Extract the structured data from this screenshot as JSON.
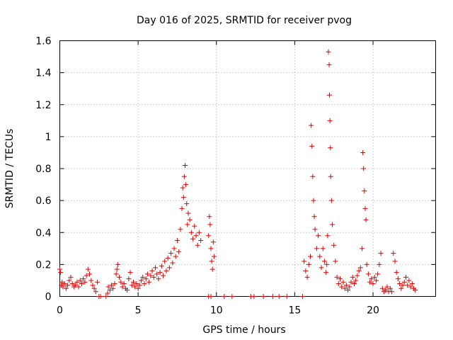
{
  "chart_data": {
    "type": "scatter",
    "title": "Day 016 of 2025, SRMTID for receiver pvog",
    "xlabel": "GPS time / hours",
    "ylabel": "SRMTID / TECUs",
    "xlim": [
      0,
      24
    ],
    "ylim": [
      0,
      1.6
    ],
    "xticks": [
      0,
      5,
      10,
      15,
      20
    ],
    "xtick_labels": [
      "0",
      "5",
      "10",
      "15",
      "20"
    ],
    "yticks": [
      0,
      0.2,
      0.4,
      0.6,
      0.8,
      1,
      1.2,
      1.4,
      1.6
    ],
    "ytick_labels": [
      "0",
      "0.2",
      "0.4",
      "0.6",
      "0.8",
      "1",
      "1.2",
      "1.4",
      "1.6"
    ],
    "grid": true,
    "marker": "+",
    "series": [
      {
        "name": "pvog",
        "color": "#e00000",
        "points": [
          [
            0.0,
            0.17
          ],
          [
            0.05,
            0.15
          ],
          [
            0.1,
            0.07
          ],
          [
            0.15,
            0.09
          ],
          [
            0.2,
            0.06
          ],
          [
            0.3,
            0.08
          ],
          [
            0.4,
            0.05
          ],
          [
            0.5,
            0.07
          ],
          [
            0.6,
            0.1
          ],
          [
            0.7,
            0.12
          ],
          [
            0.8,
            0.08
          ],
          [
            0.9,
            0.06
          ],
          [
            1.0,
            0.07
          ],
          [
            1.1,
            0.09
          ],
          [
            1.2,
            0.06
          ],
          [
            1.3,
            0.1
          ],
          [
            1.4,
            0.08
          ],
          [
            1.5,
            0.11
          ],
          [
            1.6,
            0.09
          ],
          [
            1.7,
            0.13
          ],
          [
            1.8,
            0.17
          ],
          [
            1.9,
            0.14
          ],
          [
            2.0,
            0.1
          ],
          [
            2.1,
            0.07
          ],
          [
            2.2,
            0.05
          ],
          [
            2.3,
            0.03
          ],
          [
            2.4,
            0.09
          ],
          [
            2.5,
            0.0
          ],
          [
            2.6,
            0.0
          ],
          [
            2.95,
            0.0
          ],
          [
            3.05,
            0.02
          ],
          [
            3.1,
            0.06
          ],
          [
            3.2,
            0.04
          ],
          [
            3.3,
            0.07
          ],
          [
            3.4,
            0.05
          ],
          [
            3.5,
            0.08
          ],
          [
            3.6,
            0.14
          ],
          [
            3.65,
            0.17
          ],
          [
            3.7,
            0.2
          ],
          [
            3.8,
            0.12
          ],
          [
            3.9,
            0.09
          ],
          [
            4.0,
            0.06
          ],
          [
            4.1,
            0.08
          ],
          [
            4.2,
            0.05
          ],
          [
            4.3,
            0.04
          ],
          [
            4.4,
            0.11
          ],
          [
            4.5,
            0.15
          ],
          [
            4.6,
            0.07
          ],
          [
            4.7,
            0.09
          ],
          [
            4.8,
            0.06
          ],
          [
            4.9,
            0.08
          ],
          [
            5.0,
            0.05
          ],
          [
            5.1,
            0.07
          ],
          [
            5.2,
            0.1
          ],
          [
            5.3,
            0.12
          ],
          [
            5.4,
            0.08
          ],
          [
            5.5,
            0.11
          ],
          [
            5.6,
            0.14
          ],
          [
            5.7,
            0.09
          ],
          [
            5.8,
            0.13
          ],
          [
            5.9,
            0.16
          ],
          [
            6.0,
            0.12
          ],
          [
            6.1,
            0.18
          ],
          [
            6.2,
            0.14
          ],
          [
            6.3,
            0.11
          ],
          [
            6.4,
            0.15
          ],
          [
            6.5,
            0.19
          ],
          [
            6.6,
            0.13
          ],
          [
            6.7,
            0.22
          ],
          [
            6.8,
            0.16
          ],
          [
            6.9,
            0.24
          ],
          [
            7.0,
            0.18
          ],
          [
            7.1,
            0.27
          ],
          [
            7.2,
            0.21
          ],
          [
            7.3,
            0.3
          ],
          [
            7.4,
            0.25
          ],
          [
            7.5,
            0.35
          ],
          [
            7.6,
            0.28
          ],
          [
            7.7,
            0.42
          ],
          [
            7.8,
            0.55
          ],
          [
            7.85,
            0.68
          ],
          [
            7.9,
            0.62
          ],
          [
            7.95,
            0.75
          ],
          [
            8.0,
            0.82
          ],
          [
            8.05,
            0.7
          ],
          [
            8.1,
            0.58
          ],
          [
            8.15,
            0.45
          ],
          [
            8.2,
            0.52
          ],
          [
            8.3,
            0.48
          ],
          [
            8.4,
            0.4
          ],
          [
            8.5,
            0.36
          ],
          [
            8.6,
            0.44
          ],
          [
            8.7,
            0.38
          ],
          [
            8.8,
            0.32
          ],
          [
            8.9,
            0.4
          ],
          [
            9.0,
            0.35
          ],
          [
            9.5,
            0.38
          ],
          [
            9.55,
            0.5
          ],
          [
            9.6,
            0.45
          ],
          [
            9.65,
            0.3
          ],
          [
            9.7,
            0.22
          ],
          [
            9.75,
            0.17
          ],
          [
            9.8,
            0.34
          ],
          [
            9.85,
            0.25
          ],
          [
            9.5,
            0.0
          ],
          [
            9.65,
            0.0
          ],
          [
            10.5,
            0.0
          ],
          [
            11.0,
            0.0
          ],
          [
            12.2,
            0.0
          ],
          [
            12.4,
            0.0
          ],
          [
            13.0,
            0.0
          ],
          [
            13.6,
            0.0
          ],
          [
            14.0,
            0.0
          ],
          [
            14.5,
            0.0
          ],
          [
            15.5,
            0.0
          ],
          [
            15.6,
            0.22
          ],
          [
            15.7,
            0.16
          ],
          [
            15.8,
            0.12
          ],
          [
            15.9,
            0.2
          ],
          [
            16.0,
            0.25
          ],
          [
            16.05,
            1.07
          ],
          [
            16.1,
            0.94
          ],
          [
            16.15,
            0.75
          ],
          [
            16.2,
            0.6
          ],
          [
            16.25,
            0.5
          ],
          [
            16.3,
            0.42
          ],
          [
            16.4,
            0.3
          ],
          [
            16.5,
            0.38
          ],
          [
            16.6,
            0.25
          ],
          [
            16.7,
            0.18
          ],
          [
            16.8,
            0.3
          ],
          [
            16.9,
            0.22
          ],
          [
            17.0,
            0.15
          ],
          [
            17.05,
            0.2
          ],
          [
            17.1,
            0.38
          ],
          [
            17.15,
            1.53
          ],
          [
            17.2,
            1.45
          ],
          [
            17.22,
            1.26
          ],
          [
            17.25,
            1.1
          ],
          [
            17.28,
            0.93
          ],
          [
            17.3,
            0.75
          ],
          [
            17.35,
            0.6
          ],
          [
            17.4,
            0.45
          ],
          [
            17.5,
            0.32
          ],
          [
            17.6,
            0.22
          ],
          [
            17.7,
            0.12
          ],
          [
            17.8,
            0.08
          ],
          [
            17.9,
            0.11
          ],
          [
            18.0,
            0.06
          ],
          [
            18.1,
            0.09
          ],
          [
            18.2,
            0.05
          ],
          [
            18.3,
            0.07
          ],
          [
            18.4,
            0.04
          ],
          [
            18.5,
            0.06
          ],
          [
            18.6,
            0.09
          ],
          [
            18.7,
            0.12
          ],
          [
            18.8,
            0.08
          ],
          [
            18.9,
            0.1
          ],
          [
            19.0,
            0.13
          ],
          [
            19.1,
            0.16
          ],
          [
            19.2,
            0.18
          ],
          [
            19.3,
            0.3
          ],
          [
            19.35,
            0.9
          ],
          [
            19.4,
            0.8
          ],
          [
            19.45,
            0.66
          ],
          [
            19.5,
            0.55
          ],
          [
            19.55,
            0.48
          ],
          [
            19.6,
            0.2
          ],
          [
            19.7,
            0.14
          ],
          [
            19.8,
            0.09
          ],
          [
            19.9,
            0.11
          ],
          [
            20.0,
            0.08
          ],
          [
            20.1,
            0.12
          ],
          [
            20.2,
            0.1
          ],
          [
            20.3,
            0.14
          ],
          [
            20.4,
            0.2
          ],
          [
            20.5,
            0.27
          ],
          [
            20.6,
            0.05
          ],
          [
            20.7,
            0.03
          ],
          [
            20.8,
            0.04
          ],
          [
            20.9,
            0.06
          ],
          [
            21.0,
            0.03
          ],
          [
            21.1,
            0.05
          ],
          [
            21.2,
            0.03
          ],
          [
            21.3,
            0.27
          ],
          [
            21.4,
            0.22
          ],
          [
            21.5,
            0.15
          ],
          [
            21.6,
            0.11
          ],
          [
            21.7,
            0.08
          ],
          [
            21.8,
            0.05
          ],
          [
            21.9,
            0.07
          ],
          [
            22.0,
            0.09
          ],
          [
            22.1,
            0.12
          ],
          [
            22.2,
            0.07
          ],
          [
            22.3,
            0.1
          ],
          [
            22.4,
            0.06
          ],
          [
            22.5,
            0.08
          ],
          [
            22.6,
            0.05
          ],
          [
            22.7,
            0.04
          ]
        ]
      }
    ]
  }
}
